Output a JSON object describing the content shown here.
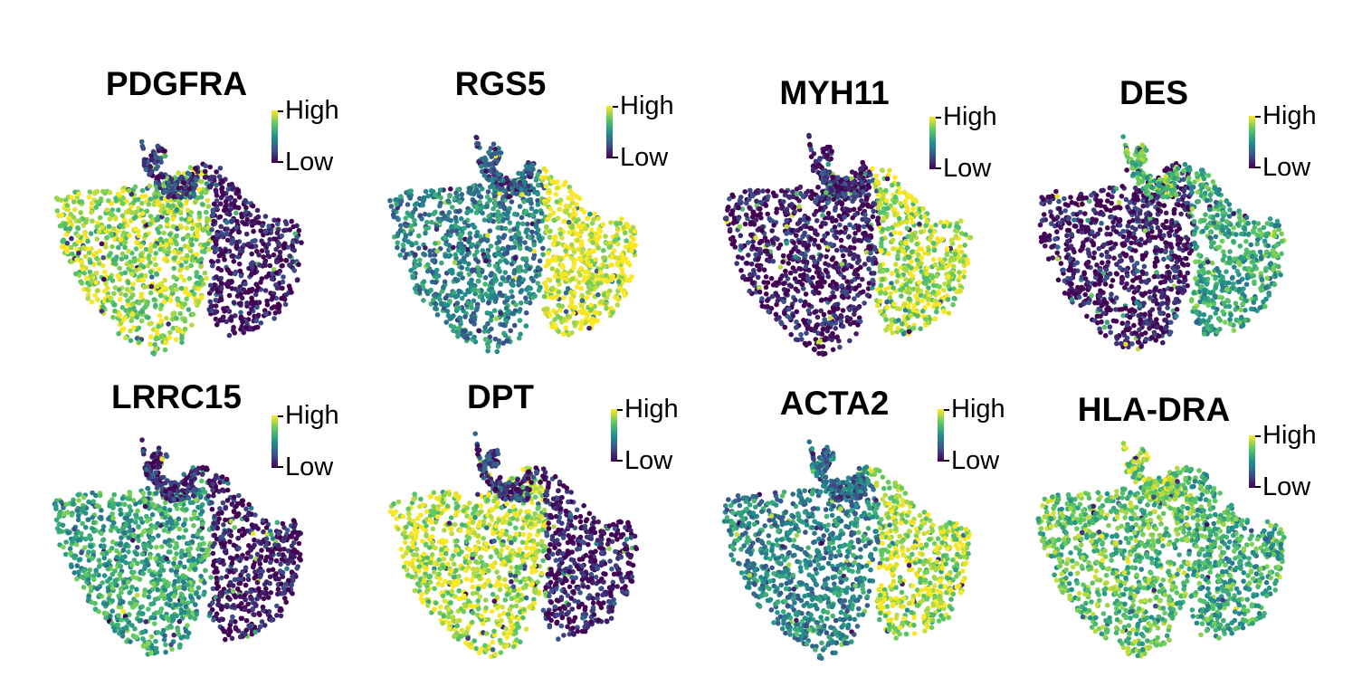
{
  "legend": {
    "high_label": "High",
    "low_label": "Low"
  },
  "colormap": [
    "#440154",
    "#3b528b",
    "#21918c",
    "#5ec962",
    "#fde725"
  ],
  "chart_data": [
    {
      "type": "scatter",
      "title": "PDGFRA",
      "colorbar": [
        "Low",
        "High"
      ],
      "cluster_expression": {
        "top_lobe": 0.2,
        "left_lobe": 0.85,
        "right_lobe": 0.05
      }
    },
    {
      "type": "scatter",
      "title": "RGS5",
      "colorbar": [
        "Low",
        "High"
      ],
      "cluster_expression": {
        "top_lobe": 0.25,
        "left_lobe": 0.45,
        "right_lobe": 0.98
      }
    },
    {
      "type": "scatter",
      "title": "MYH11",
      "colorbar": [
        "Low",
        "High"
      ],
      "cluster_expression": {
        "top_lobe": 0.08,
        "left_lobe": 0.05,
        "right_lobe": 0.88
      }
    },
    {
      "type": "scatter",
      "title": "DES",
      "colorbar": [
        "Low",
        "High"
      ],
      "cluster_expression": {
        "top_lobe": 0.7,
        "left_lobe": 0.05,
        "right_lobe": 0.6
      }
    },
    {
      "type": "scatter",
      "title": "LRRC15",
      "colorbar": [
        "Low",
        "High"
      ],
      "cluster_expression": {
        "top_lobe": 0.12,
        "left_lobe": 0.6,
        "right_lobe": 0.03
      }
    },
    {
      "type": "scatter",
      "title": "DPT",
      "colorbar": [
        "Low",
        "High"
      ],
      "cluster_expression": {
        "top_lobe": 0.15,
        "left_lobe": 0.9,
        "right_lobe": 0.06
      }
    },
    {
      "type": "scatter",
      "title": "ACTA2",
      "colorbar": [
        "Low",
        "High"
      ],
      "cluster_expression": {
        "top_lobe": 0.35,
        "left_lobe": 0.45,
        "right_lobe": 0.88
      }
    },
    {
      "type": "scatter",
      "title": "HLA-DRA",
      "colorbar": [
        "Low",
        "High"
      ],
      "cluster_expression": {
        "top_lobe": 0.8,
        "left_lobe": 0.72,
        "right_lobe": 0.62
      }
    }
  ]
}
